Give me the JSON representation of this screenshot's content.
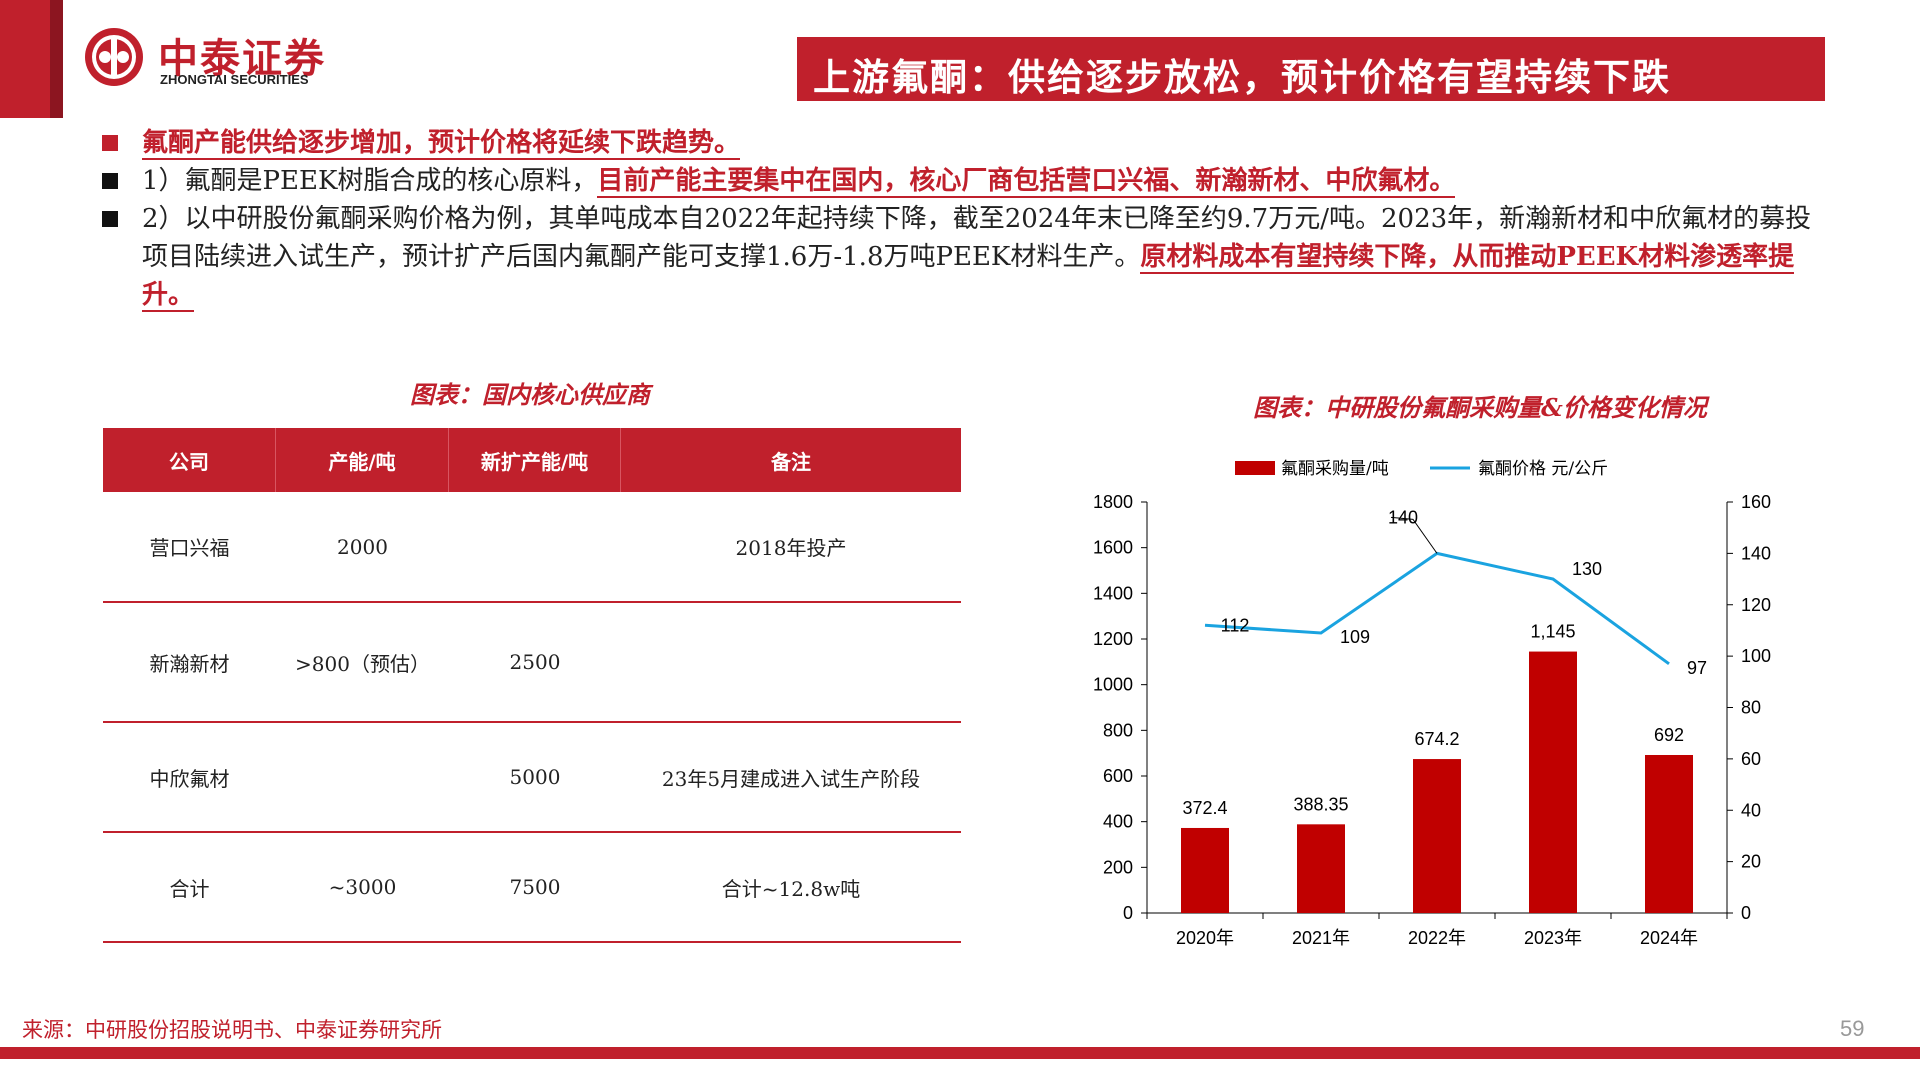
{
  "header": {
    "logo_cn": "中泰证券",
    "logo_en": "ZHONGTAI SECURITIES",
    "title": "上游氟酮：供给逐步放松，预计价格有望持续下跌"
  },
  "bullets": [
    {
      "plain": "",
      "highlight": "氟酮产能供给逐步增加，预计价格将延续下跌趋势。"
    },
    {
      "plain": "1）氟酮是PEEK树脂合成的核心原料，",
      "highlight": "目前产能主要集中在国内，核心厂商包括营口兴福、新瀚新材、中欣氟材。"
    },
    {
      "plain": "2）以中研股份氟酮采购价格为例，其单吨成本自2022年起持续下降，截至2024年末已降至约9.7万元/吨。2023年，新瀚新材和中欣氟材的募投项目陆续进入试生产，预计扩产后国内氟酮产能可支撑1.6万-1.8万吨PEEK材料生产。",
      "highlight": "原材料成本有望持续下降，从而推动PEEK材料渗透率提升。"
    }
  ],
  "table": {
    "caption": "图表：国内核心供应商",
    "headers": [
      "公司",
      "产能/吨",
      "新扩产能/吨",
      "备注"
    ],
    "rows": [
      [
        "营口兴福",
        "2000",
        "",
        "2018年投产"
      ],
      [
        "新瀚新材",
        ">800（预估）",
        "2500",
        ""
      ],
      [
        "中欣氟材",
        "",
        "5000",
        "23年5月建成进入试生产阶段"
      ],
      [
        "合计",
        "~3000",
        "7500",
        "合计~12.8w吨"
      ]
    ]
  },
  "chart_caption": "图表：中研股份氟酮采购量&价格变化情况",
  "chart_data": {
    "type": "bar",
    "categories": [
      "2020年",
      "2021年",
      "2022年",
      "2023年",
      "2024年"
    ],
    "series": [
      {
        "name": "氟酮采购量/吨",
        "type": "bar",
        "axis": "left",
        "values": [
          372.4,
          388.35,
          674.2,
          1145,
          692
        ],
        "labels": [
          "372.4",
          "388.35",
          "674.2",
          "1,145",
          "692"
        ],
        "color": "#c00000"
      },
      {
        "name": "氟酮价格 元/公斤",
        "type": "line",
        "axis": "right",
        "values": [
          112,
          109,
          140,
          130,
          97
        ],
        "labels": [
          "112",
          "109",
          "140",
          "130",
          "97"
        ],
        "color": "#1aa3e0"
      }
    ],
    "y_left": {
      "ylim": [
        0,
        1800
      ],
      "ticks": [
        "0",
        "200",
        "400",
        "600",
        "800",
        "1000",
        "1200",
        "1400",
        "1600",
        "1800"
      ]
    },
    "y_right": {
      "ylim": [
        0,
        160
      ],
      "ticks": [
        "0",
        "20",
        "40",
        "60",
        "80",
        "100",
        "120",
        "140",
        "160"
      ]
    },
    "legend": "top-center",
    "grid": false
  },
  "footer": {
    "source": "来源：中研股份招股说明书、中泰证券研究所",
    "page_number": "59"
  }
}
